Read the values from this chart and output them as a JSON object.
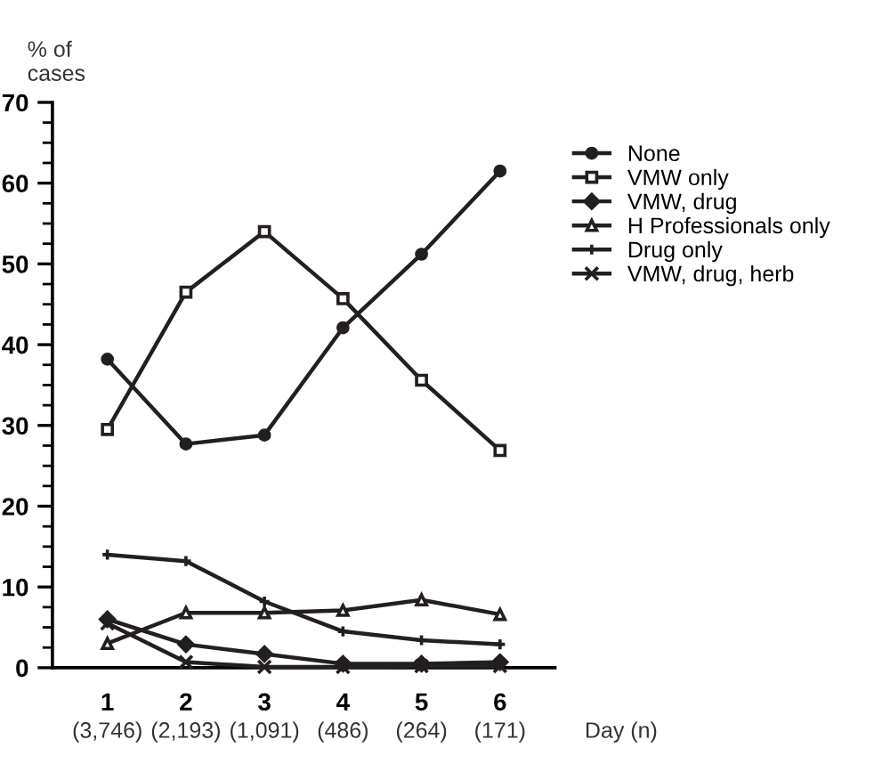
{
  "chart_data": {
    "type": "line",
    "ylabel": "% of\ncases",
    "xlabel": "Day (n)",
    "categories": [
      "1",
      "2",
      "3",
      "4",
      "5",
      "6"
    ],
    "series": [
      {
        "name": "None",
        "color": "#231f20",
        "marker": "circle",
        "values": [
          38.2,
          27.7,
          28.8,
          42.1,
          51.2,
          61.5
        ]
      },
      {
        "name": "VMW only",
        "color": "#231f20",
        "marker": "square",
        "values": [
          29.5,
          46.5,
          54,
          45.7,
          35.6,
          26.9
        ]
      },
      {
        "name": "VMW, drug",
        "color": "#231f20",
        "marker": "diamond",
        "values": [
          6,
          2.9,
          1.7,
          0.5,
          0.5,
          0.7
        ]
      },
      {
        "name": "H Professionals only",
        "color": "#231f20",
        "marker": "triangle",
        "values": [
          3,
          6.8,
          6.8,
          7.1,
          8.4,
          6.6
        ]
      },
      {
        "name": "Drug only",
        "color": "#231f20",
        "marker": "plus",
        "values": [
          14,
          13.2,
          8.2,
          4.5,
          3.4,
          2.9
        ]
      },
      {
        "name": "VMW, drug, herb",
        "color": "#231f20",
        "marker": "cross",
        "values": [
          5.5,
          0.7,
          0.1,
          0.1,
          0.2,
          0.2
        ]
      }
    ],
    "annotations": [
      "(3,746)",
      "(2,193)",
      "(1,091)",
      "(486)",
      "(264)",
      "(171)"
    ],
    "ylim": [
      0,
      70
    ],
    "yticks": [
      0,
      10,
      20,
      30,
      40,
      50,
      60,
      70
    ],
    "grid": false,
    "legend": "right",
    "line_style": "solid"
  }
}
